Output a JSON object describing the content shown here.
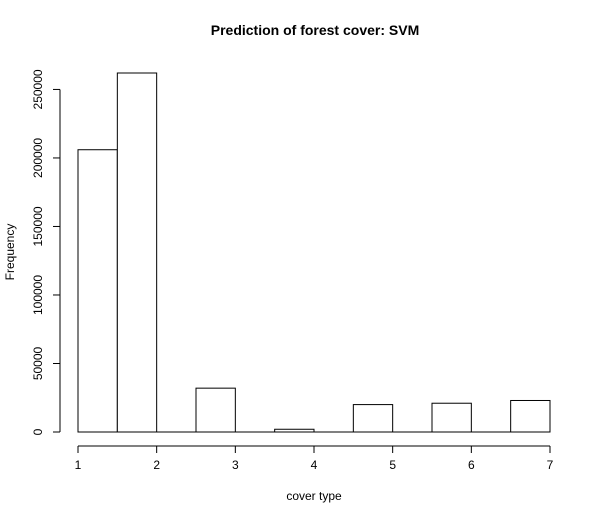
{
  "chart_data": {
    "type": "bar",
    "title": "Prediction of forest cover: SVM",
    "xlabel": "cover type",
    "ylabel": "Frequency",
    "bins": [
      {
        "from": 1.0,
        "to": 1.5,
        "value": 206000
      },
      {
        "from": 1.5,
        "to": 2.0,
        "value": 262000
      },
      {
        "from": 2.0,
        "to": 2.5,
        "value": 0
      },
      {
        "from": 2.5,
        "to": 3.0,
        "value": 32000
      },
      {
        "from": 3.0,
        "to": 3.5,
        "value": 0
      },
      {
        "from": 3.5,
        "to": 4.0,
        "value": 2000
      },
      {
        "from": 4.0,
        "to": 4.5,
        "value": 0
      },
      {
        "from": 4.5,
        "to": 5.0,
        "value": 20000
      },
      {
        "from": 5.0,
        "to": 5.5,
        "value": 0
      },
      {
        "from": 5.5,
        "to": 6.0,
        "value": 21000
      },
      {
        "from": 6.0,
        "to": 6.5,
        "value": 0
      },
      {
        "from": 6.5,
        "to": 7.0,
        "value": 23000
      }
    ],
    "xlim": [
      1,
      7
    ],
    "ylim": [
      0,
      262000
    ],
    "xticks": [
      1,
      2,
      3,
      4,
      5,
      6,
      7
    ],
    "yticks": [
      0,
      50000,
      100000,
      150000,
      200000,
      250000
    ],
    "xtick_labels": [
      "1",
      "2",
      "3",
      "4",
      "5",
      "6",
      "7"
    ],
    "ytick_labels": [
      "0",
      "50000",
      "100000",
      "150000",
      "200000",
      "250000"
    ],
    "grid": false,
    "legend": "none"
  }
}
